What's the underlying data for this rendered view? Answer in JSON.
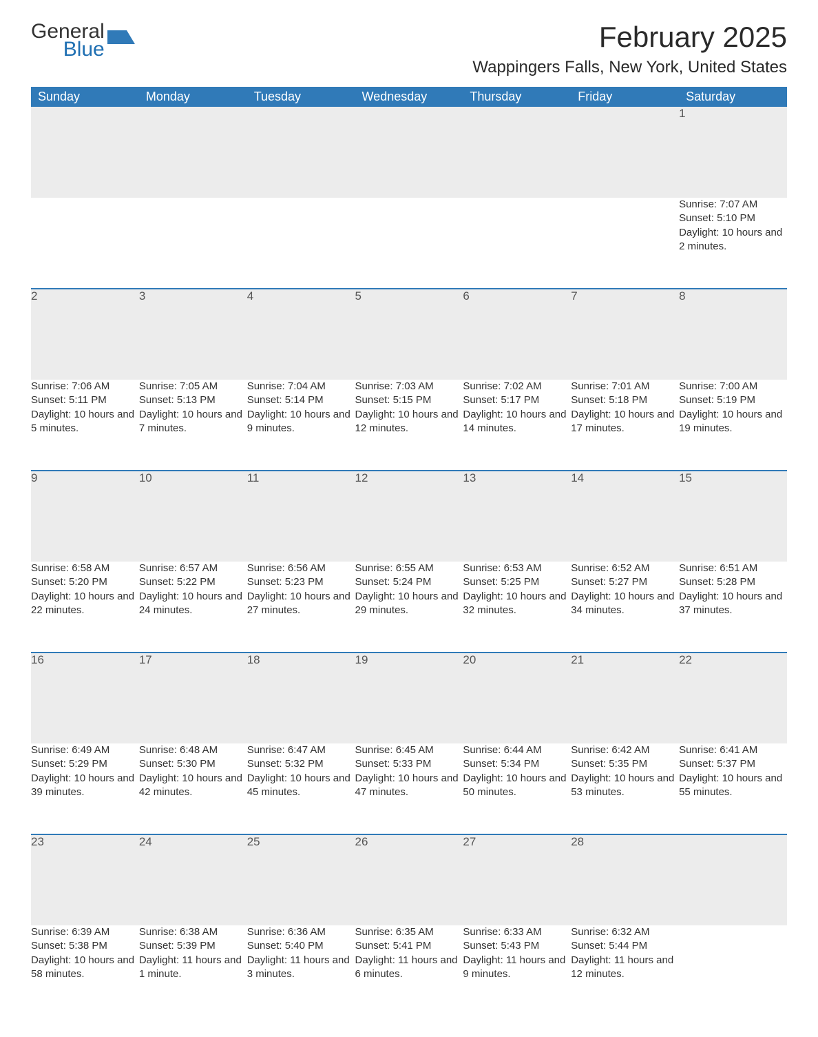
{
  "logo": {
    "text1": "General",
    "text2": "Blue",
    "flag_color": "#307ab8"
  },
  "title": "February 2025",
  "location": "Wappingers Falls, New York, United States",
  "colors": {
    "header_bg": "#307ab8",
    "header_text": "#ffffff",
    "daynum_bg": "#ececec",
    "row_border": "#307ab8",
    "body_text": "#333333"
  },
  "fonts": {
    "title_pt": 42,
    "location_pt": 24,
    "header_pt": 18,
    "daynum_pt": 17,
    "body_pt": 15
  },
  "weekdays": [
    "Sunday",
    "Monday",
    "Tuesday",
    "Wednesday",
    "Thursday",
    "Friday",
    "Saturday"
  ],
  "weeks": [
    [
      null,
      null,
      null,
      null,
      null,
      null,
      {
        "n": "1",
        "sunrise": "Sunrise: 7:07 AM",
        "sunset": "Sunset: 5:10 PM",
        "daylight": "Daylight: 10 hours and 2 minutes."
      }
    ],
    [
      {
        "n": "2",
        "sunrise": "Sunrise: 7:06 AM",
        "sunset": "Sunset: 5:11 PM",
        "daylight": "Daylight: 10 hours and 5 minutes."
      },
      {
        "n": "3",
        "sunrise": "Sunrise: 7:05 AM",
        "sunset": "Sunset: 5:13 PM",
        "daylight": "Daylight: 10 hours and 7 minutes."
      },
      {
        "n": "4",
        "sunrise": "Sunrise: 7:04 AM",
        "sunset": "Sunset: 5:14 PM",
        "daylight": "Daylight: 10 hours and 9 minutes."
      },
      {
        "n": "5",
        "sunrise": "Sunrise: 7:03 AM",
        "sunset": "Sunset: 5:15 PM",
        "daylight": "Daylight: 10 hours and 12 minutes."
      },
      {
        "n": "6",
        "sunrise": "Sunrise: 7:02 AM",
        "sunset": "Sunset: 5:17 PM",
        "daylight": "Daylight: 10 hours and 14 minutes."
      },
      {
        "n": "7",
        "sunrise": "Sunrise: 7:01 AM",
        "sunset": "Sunset: 5:18 PM",
        "daylight": "Daylight: 10 hours and 17 minutes."
      },
      {
        "n": "8",
        "sunrise": "Sunrise: 7:00 AM",
        "sunset": "Sunset: 5:19 PM",
        "daylight": "Daylight: 10 hours and 19 minutes."
      }
    ],
    [
      {
        "n": "9",
        "sunrise": "Sunrise: 6:58 AM",
        "sunset": "Sunset: 5:20 PM",
        "daylight": "Daylight: 10 hours and 22 minutes."
      },
      {
        "n": "10",
        "sunrise": "Sunrise: 6:57 AM",
        "sunset": "Sunset: 5:22 PM",
        "daylight": "Daylight: 10 hours and 24 minutes."
      },
      {
        "n": "11",
        "sunrise": "Sunrise: 6:56 AM",
        "sunset": "Sunset: 5:23 PM",
        "daylight": "Daylight: 10 hours and 27 minutes."
      },
      {
        "n": "12",
        "sunrise": "Sunrise: 6:55 AM",
        "sunset": "Sunset: 5:24 PM",
        "daylight": "Daylight: 10 hours and 29 minutes."
      },
      {
        "n": "13",
        "sunrise": "Sunrise: 6:53 AM",
        "sunset": "Sunset: 5:25 PM",
        "daylight": "Daylight: 10 hours and 32 minutes."
      },
      {
        "n": "14",
        "sunrise": "Sunrise: 6:52 AM",
        "sunset": "Sunset: 5:27 PM",
        "daylight": "Daylight: 10 hours and 34 minutes."
      },
      {
        "n": "15",
        "sunrise": "Sunrise: 6:51 AM",
        "sunset": "Sunset: 5:28 PM",
        "daylight": "Daylight: 10 hours and 37 minutes."
      }
    ],
    [
      {
        "n": "16",
        "sunrise": "Sunrise: 6:49 AM",
        "sunset": "Sunset: 5:29 PM",
        "daylight": "Daylight: 10 hours and 39 minutes."
      },
      {
        "n": "17",
        "sunrise": "Sunrise: 6:48 AM",
        "sunset": "Sunset: 5:30 PM",
        "daylight": "Daylight: 10 hours and 42 minutes."
      },
      {
        "n": "18",
        "sunrise": "Sunrise: 6:47 AM",
        "sunset": "Sunset: 5:32 PM",
        "daylight": "Daylight: 10 hours and 45 minutes."
      },
      {
        "n": "19",
        "sunrise": "Sunrise: 6:45 AM",
        "sunset": "Sunset: 5:33 PM",
        "daylight": "Daylight: 10 hours and 47 minutes."
      },
      {
        "n": "20",
        "sunrise": "Sunrise: 6:44 AM",
        "sunset": "Sunset: 5:34 PM",
        "daylight": "Daylight: 10 hours and 50 minutes."
      },
      {
        "n": "21",
        "sunrise": "Sunrise: 6:42 AM",
        "sunset": "Sunset: 5:35 PM",
        "daylight": "Daylight: 10 hours and 53 minutes."
      },
      {
        "n": "22",
        "sunrise": "Sunrise: 6:41 AM",
        "sunset": "Sunset: 5:37 PM",
        "daylight": "Daylight: 10 hours and 55 minutes."
      }
    ],
    [
      {
        "n": "23",
        "sunrise": "Sunrise: 6:39 AM",
        "sunset": "Sunset: 5:38 PM",
        "daylight": "Daylight: 10 hours and 58 minutes."
      },
      {
        "n": "24",
        "sunrise": "Sunrise: 6:38 AM",
        "sunset": "Sunset: 5:39 PM",
        "daylight": "Daylight: 11 hours and 1 minute."
      },
      {
        "n": "25",
        "sunrise": "Sunrise: 6:36 AM",
        "sunset": "Sunset: 5:40 PM",
        "daylight": "Daylight: 11 hours and 3 minutes."
      },
      {
        "n": "26",
        "sunrise": "Sunrise: 6:35 AM",
        "sunset": "Sunset: 5:41 PM",
        "daylight": "Daylight: 11 hours and 6 minutes."
      },
      {
        "n": "27",
        "sunrise": "Sunrise: 6:33 AM",
        "sunset": "Sunset: 5:43 PM",
        "daylight": "Daylight: 11 hours and 9 minutes."
      },
      {
        "n": "28",
        "sunrise": "Sunrise: 6:32 AM",
        "sunset": "Sunset: 5:44 PM",
        "daylight": "Daylight: 11 hours and 12 minutes."
      },
      null
    ]
  ]
}
